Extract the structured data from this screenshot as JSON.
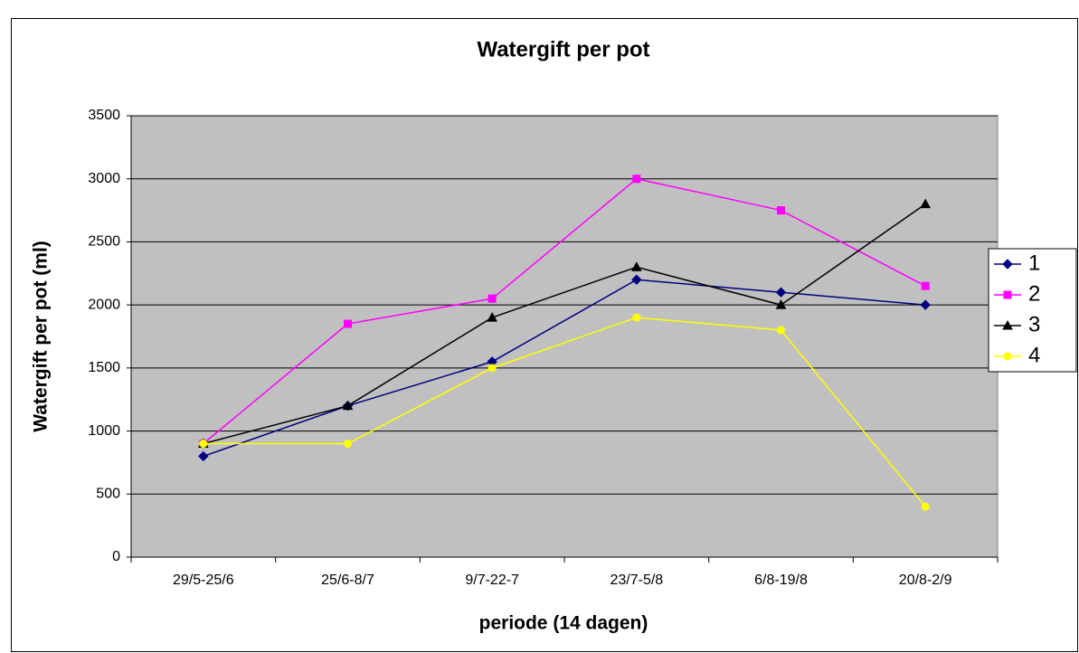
{
  "chart_data": {
    "type": "line",
    "title": "Watergift per pot",
    "x_label": "periode (14 dagen)",
    "y_label": "Watergift per pot (ml)",
    "categories": [
      "29/5-25/6",
      "25/6-8/7",
      "9/7-22-7",
      "23/7-5/8",
      "6/8-19/8",
      "20/8-2/9"
    ],
    "series": [
      {
        "name": "1",
        "color": "#000080",
        "marker": "diamond",
        "values": [
          800,
          1200,
          1550,
          2200,
          2100,
          2000
        ]
      },
      {
        "name": "2",
        "color": "#ff00ff",
        "marker": "square",
        "values": [
          900,
          1850,
          2050,
          3000,
          2750,
          2150
        ]
      },
      {
        "name": "3",
        "color": "#000000",
        "marker": "triangle",
        "values": [
          900,
          1200,
          1900,
          2300,
          2000,
          2800
        ]
      },
      {
        "name": "4",
        "color": "#ffff00",
        "marker": "circle",
        "values": [
          900,
          900,
          1500,
          1900,
          1800,
          400
        ]
      }
    ],
    "ylim": [
      0,
      3500
    ],
    "yticks": [
      0,
      500,
      1000,
      1500,
      2000,
      2500,
      3000,
      3500
    ],
    "grid": true,
    "legend": "right",
    "plot_background": "#c0c0c0"
  }
}
